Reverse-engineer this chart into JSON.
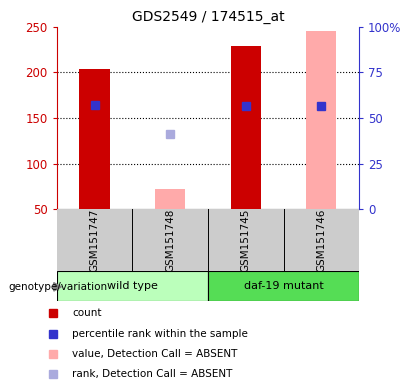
{
  "title": "GDS2549 / 174515_at",
  "samples": [
    "GSM151747",
    "GSM151748",
    "GSM151745",
    "GSM151746"
  ],
  "ylim_left": [
    50,
    250
  ],
  "ylim_right": [
    0,
    100
  ],
  "yticks_left": [
    50,
    100,
    150,
    200,
    250
  ],
  "yticks_right": [
    0,
    25,
    50,
    75,
    100
  ],
  "ytick_labels_right": [
    "0",
    "25",
    "50",
    "75",
    "100%"
  ],
  "red_bars": [
    204,
    null,
    229,
    null
  ],
  "pink_bars": [
    null,
    72,
    null,
    245
  ],
  "blue_squares": [
    164,
    null,
    163,
    163
  ],
  "lavender_squares": [
    null,
    133,
    null,
    null
  ],
  "red_color": "#cc0000",
  "pink_color": "#ffaaaa",
  "blue_color": "#3333cc",
  "lavender_color": "#aaaadd",
  "bar_width": 0.4,
  "left_tick_color": "#cc0000",
  "right_tick_color": "#3333cc",
  "background_plot": "#ffffff",
  "background_label": "#cccccc",
  "wt_color": "#bbffbb",
  "daf_color": "#55dd55",
  "genotype_label": "genotype/variation",
  "legend_items": [
    [
      "#cc0000",
      "count"
    ],
    [
      "#3333cc",
      "percentile rank within the sample"
    ],
    [
      "#ffaaaa",
      "value, Detection Call = ABSENT"
    ],
    [
      "#aaaadd",
      "rank, Detection Call = ABSENT"
    ]
  ]
}
